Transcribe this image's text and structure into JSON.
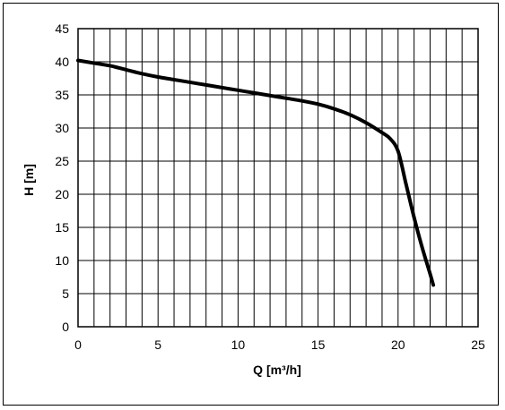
{
  "chart_data": {
    "type": "line",
    "title": "",
    "xlabel": "Q [m³/h]",
    "ylabel": "H [m]",
    "xlim": [
      0,
      25
    ],
    "ylim": [
      0,
      45
    ],
    "x_ticks": [
      "0",
      "5",
      "10",
      "15",
      "20",
      "25"
    ],
    "y_ticks": [
      "0",
      "5",
      "10",
      "15",
      "20",
      "25",
      "30",
      "35",
      "40",
      "45"
    ],
    "x_minor_step": 1,
    "y_grid_step": 5,
    "grid": true,
    "legend": "none",
    "series": [
      {
        "x": [
          0,
          1,
          2,
          3,
          4,
          5,
          6,
          7,
          8,
          9,
          10,
          11,
          12,
          13,
          14,
          15,
          16,
          17,
          18,
          19,
          19.5,
          20,
          20.5,
          21,
          21.5,
          22,
          22.2
        ],
        "y": [
          40.2,
          39.8,
          39.4,
          38.8,
          38.2,
          37.7,
          37.3,
          36.9,
          36.5,
          36.1,
          35.7,
          35.3,
          34.9,
          34.5,
          34.1,
          33.6,
          32.9,
          32.0,
          30.8,
          29.3,
          28.4,
          26.5,
          21.5,
          16.5,
          12.0,
          8.0,
          6.3
        ],
        "color": "#000000"
      }
    ]
  }
}
